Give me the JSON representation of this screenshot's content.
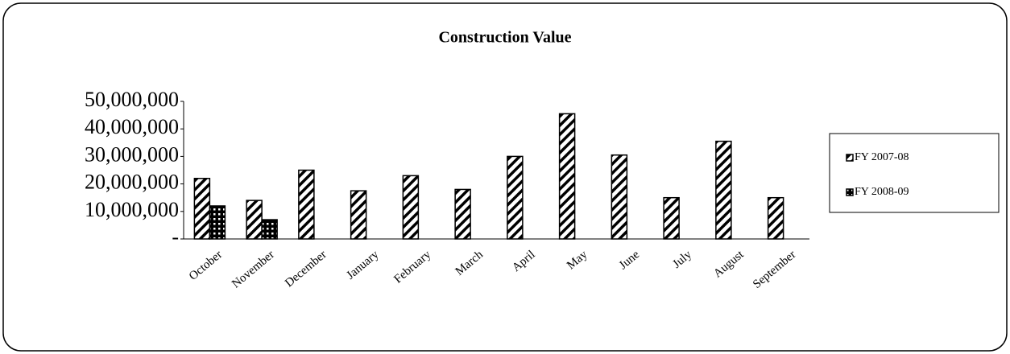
{
  "chart_data": {
    "type": "bar",
    "title": "Construction Value",
    "categories": [
      "October",
      "November",
      "December",
      "January",
      "February",
      "March",
      "April",
      "May",
      "June",
      "July",
      "August",
      "September"
    ],
    "series": [
      {
        "name": "FY 2007-08",
        "color": "#000000",
        "values": [
          22000000,
          14000000,
          25000000,
          17500000,
          23000000,
          18000000,
          30000000,
          45500000,
          30500000,
          15000000,
          35500000,
          15000000
        ]
      },
      {
        "name": "FY 2008-09",
        "color": "#000000",
        "values": [
          12000000,
          7000000,
          null,
          null,
          null,
          null,
          null,
          null,
          null,
          null,
          null,
          null
        ]
      }
    ],
    "ylim": [
      0,
      50000000
    ],
    "yticks": [
      {
        "value": 0,
        "label": "-"
      },
      {
        "value": 10000000,
        "label": "10,000,000"
      },
      {
        "value": 20000000,
        "label": "20,000,000"
      },
      {
        "value": 30000000,
        "label": "30,000,000"
      },
      {
        "value": 40000000,
        "label": "40,000,000"
      },
      {
        "value": 50000000,
        "label": "50,000,000"
      }
    ],
    "grid": false,
    "legend": "right"
  }
}
